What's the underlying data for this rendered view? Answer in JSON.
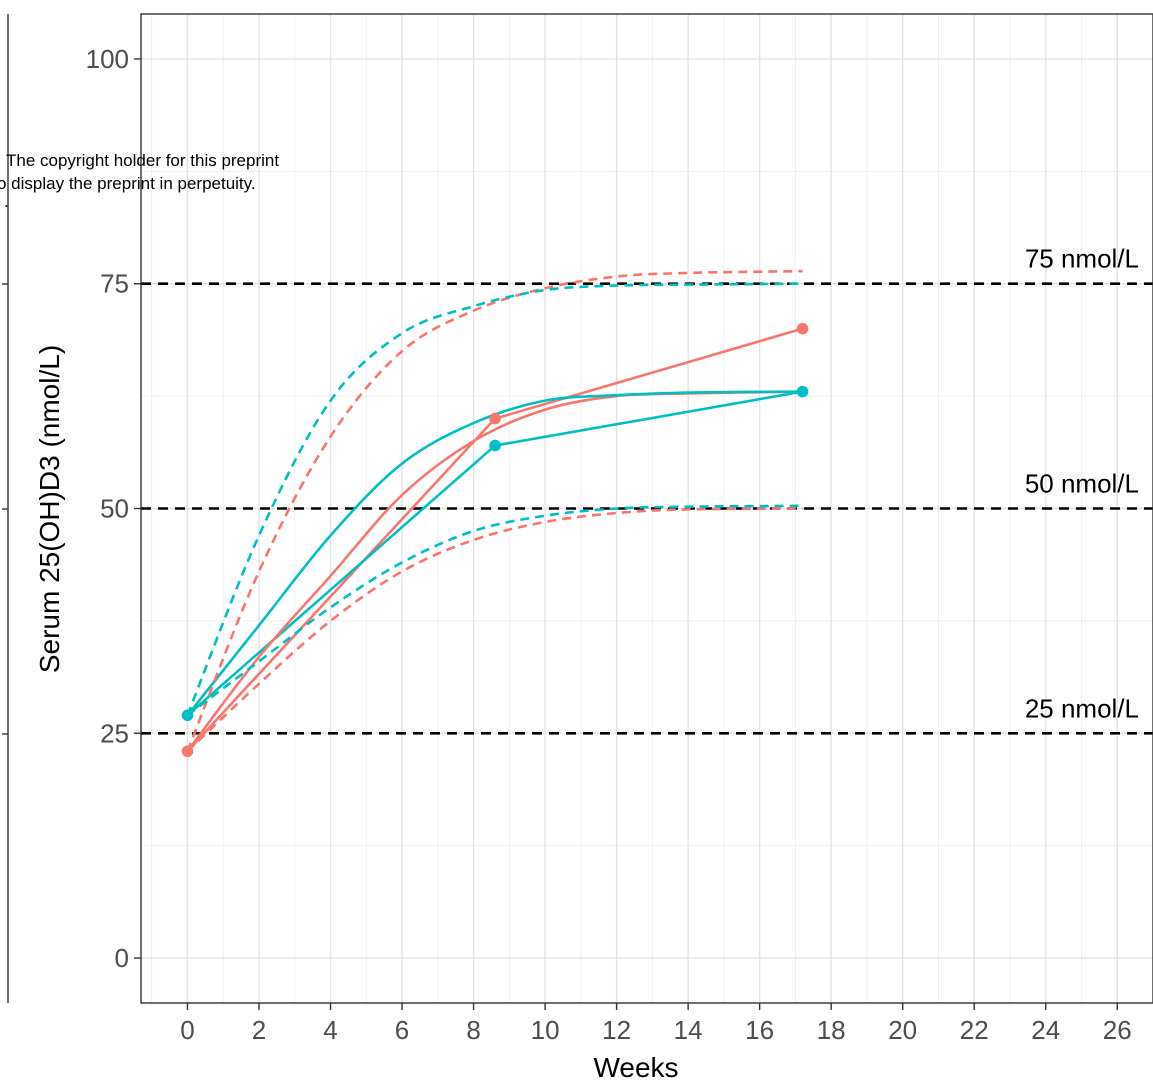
{
  "watermark": {
    "line1": "The copyright holder for this preprint",
    "line2": "o display the preprint in perpetuity.",
    "line3": "."
  },
  "chart_data": {
    "type": "line",
    "xlabel": "Weeks",
    "ylabel": "Serum 25(OH)D3 (nmol/L)",
    "xlim": [
      -1.3,
      27.0
    ],
    "ylim": [
      -5,
      105
    ],
    "x_ticks": [
      0,
      2,
      4,
      6,
      8,
      10,
      12,
      14,
      16,
      18,
      20,
      22,
      24,
      26
    ],
    "x_tick_labels": [
      "0",
      "2",
      "4",
      "6",
      "8",
      "10",
      "12",
      "14",
      "16",
      "18",
      "20",
      "22",
      "24",
      "26"
    ],
    "y_ticks": [
      0,
      25,
      50,
      75,
      100
    ],
    "y_tick_labels": [
      "0",
      "25",
      "50",
      "75",
      "100"
    ],
    "grid": true,
    "colors": {
      "red": "#f8766d",
      "teal": "#00bfc4",
      "ref": "#000000"
    },
    "reference_lines": [
      {
        "y": 75,
        "label": "75 nmol/L"
      },
      {
        "y": 50,
        "label": "50 nmol/L"
      },
      {
        "y": 25,
        "label": "25 nmol/L"
      }
    ],
    "series": [
      {
        "color": "red",
        "style": "solid",
        "kind": "segments",
        "markers": true,
        "x": [
          0,
          8.6,
          17.2
        ],
        "y": [
          23,
          60,
          70
        ]
      },
      {
        "color": "teal",
        "style": "solid",
        "kind": "segments",
        "markers": true,
        "x": [
          0,
          8.6,
          17.2
        ],
        "y": [
          27,
          57,
          63
        ]
      },
      {
        "color": "red",
        "style": "solid",
        "kind": "curve",
        "markers": false,
        "x": [
          0,
          2,
          4,
          6,
          8,
          10,
          12,
          14,
          17.2
        ],
        "y": [
          23,
          33.5,
          42.5,
          51.5,
          57.5,
          61,
          62.5,
          62.8,
          63
        ]
      },
      {
        "color": "teal",
        "style": "solid",
        "kind": "curve",
        "markers": false,
        "x": [
          0,
          2,
          4,
          6,
          8,
          10,
          12,
          14,
          17.2
        ],
        "y": [
          27,
          37,
          47,
          55,
          59.5,
          62,
          62.6,
          62.9,
          63
        ]
      },
      {
        "color": "red",
        "style": "dashed",
        "kind": "curve",
        "markers": false,
        "x": [
          0,
          2,
          4,
          6,
          8,
          10,
          12,
          14,
          17.2
        ],
        "y": [
          23,
          43,
          58,
          67.5,
          72,
          74.5,
          75.8,
          76.2,
          76.4
        ]
      },
      {
        "color": "teal",
        "style": "dashed",
        "kind": "curve",
        "markers": false,
        "x": [
          0,
          2,
          4,
          6,
          8,
          10,
          12,
          14,
          17.2
        ],
        "y": [
          27,
          47,
          62,
          69.5,
          72.5,
          74.3,
          74.8,
          74.9,
          75
        ]
      },
      {
        "color": "red",
        "style": "dashed",
        "kind": "curve",
        "markers": false,
        "x": [
          0,
          2,
          4,
          6,
          8,
          10,
          12,
          14,
          17.2
        ],
        "y": [
          23,
          30.5,
          37.5,
          43,
          46.5,
          48.5,
          49.5,
          49.9,
          50
        ]
      },
      {
        "color": "teal",
        "style": "dashed",
        "kind": "curve",
        "markers": false,
        "x": [
          0,
          2,
          4,
          6,
          8,
          10,
          12,
          14,
          17.2
        ],
        "y": [
          27,
          33,
          39,
          44,
          47.5,
          49.2,
          50,
          50.2,
          50.3
        ]
      }
    ]
  }
}
